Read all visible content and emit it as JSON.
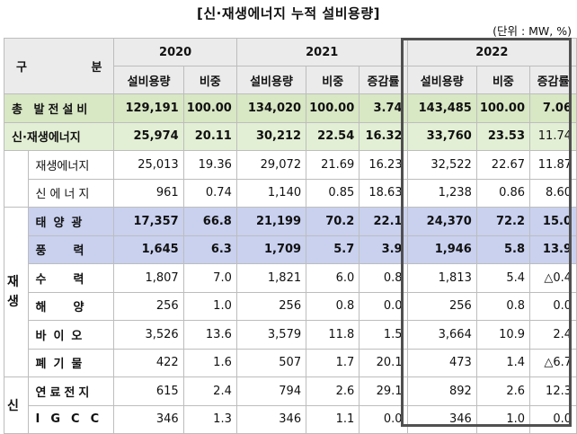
{
  "title": "[신·재생에너지 누적 설비용량]",
  "unit": "(단위 : MW, %)",
  "header": {
    "corner_left": "구",
    "corner_right": "분",
    "years": [
      "2020",
      "2021",
      "2022"
    ],
    "col_capacity": "설비용량",
    "col_share": "비중",
    "col_growth": "증감률"
  },
  "group_labels": {
    "renewable": "재\n생",
    "new": "신"
  },
  "rows": [
    {
      "label": "총 발전설비",
      "y2020": [
        "129,191",
        "100.00"
      ],
      "y2021": [
        "134,020",
        "100.00",
        "3.74"
      ],
      "y2022": [
        "143,485",
        "100.00",
        "7.06"
      ]
    },
    {
      "label": "신·재생에너지",
      "y2020": [
        "25,974",
        "20.11"
      ],
      "y2021": [
        "30,212",
        "22.54",
        "16.32"
      ],
      "y2022": [
        "33,760",
        "23.53",
        "11.74"
      ]
    },
    {
      "label": "재생에너지",
      "y2020": [
        "25,013",
        "19.36"
      ],
      "y2021": [
        "29,072",
        "21.69",
        "16.23"
      ],
      "y2022": [
        "32,522",
        "22.67",
        "11.87"
      ]
    },
    {
      "label": "신에너지",
      "y2020": [
        "961",
        "0.74"
      ],
      "y2021": [
        "1,140",
        "0.85",
        "18.63"
      ],
      "y2022": [
        "1,238",
        "0.86",
        "8.60"
      ]
    },
    {
      "label": "태양광",
      "y2020": [
        "17,357",
        "66.8"
      ],
      "y2021": [
        "21,199",
        "70.2",
        "22.1"
      ],
      "y2022": [
        "24,370",
        "72.2",
        "15.0"
      ]
    },
    {
      "label": "풍력",
      "y2020": [
        "1,645",
        "6.3"
      ],
      "y2021": [
        "1,709",
        "5.7",
        "3.9"
      ],
      "y2022": [
        "1,946",
        "5.8",
        "13.9"
      ]
    },
    {
      "label": "수력",
      "y2020": [
        "1,807",
        "7.0"
      ],
      "y2021": [
        "1,821",
        "6.0",
        "0.8"
      ],
      "y2022": [
        "1,813",
        "5.4",
        "△0.4"
      ]
    },
    {
      "label": "해양",
      "y2020": [
        "256",
        "1.0"
      ],
      "y2021": [
        "256",
        "0.8",
        "0.0"
      ],
      "y2022": [
        "256",
        "0.8",
        "0.0"
      ]
    },
    {
      "label": "바이오",
      "y2020": [
        "3,526",
        "13.6"
      ],
      "y2021": [
        "3,579",
        "11.8",
        "1.5"
      ],
      "y2022": [
        "3,664",
        "10.9",
        "2.4"
      ]
    },
    {
      "label": "폐기물",
      "y2020": [
        "422",
        "1.6"
      ],
      "y2021": [
        "507",
        "1.7",
        "20.1"
      ],
      "y2022": [
        "473",
        "1.4",
        "△6.7"
      ]
    },
    {
      "label": "연료전지",
      "y2020": [
        "615",
        "2.4"
      ],
      "y2021": [
        "794",
        "2.6",
        "29.1"
      ],
      "y2022": [
        "892",
        "2.6",
        "12.3"
      ]
    },
    {
      "label": "IGCC",
      "y2020": [
        "346",
        "1.3"
      ],
      "y2021": [
        "346",
        "1.1",
        "0.0"
      ],
      "y2022": [
        "346",
        "1.0",
        "0.0"
      ]
    }
  ]
}
